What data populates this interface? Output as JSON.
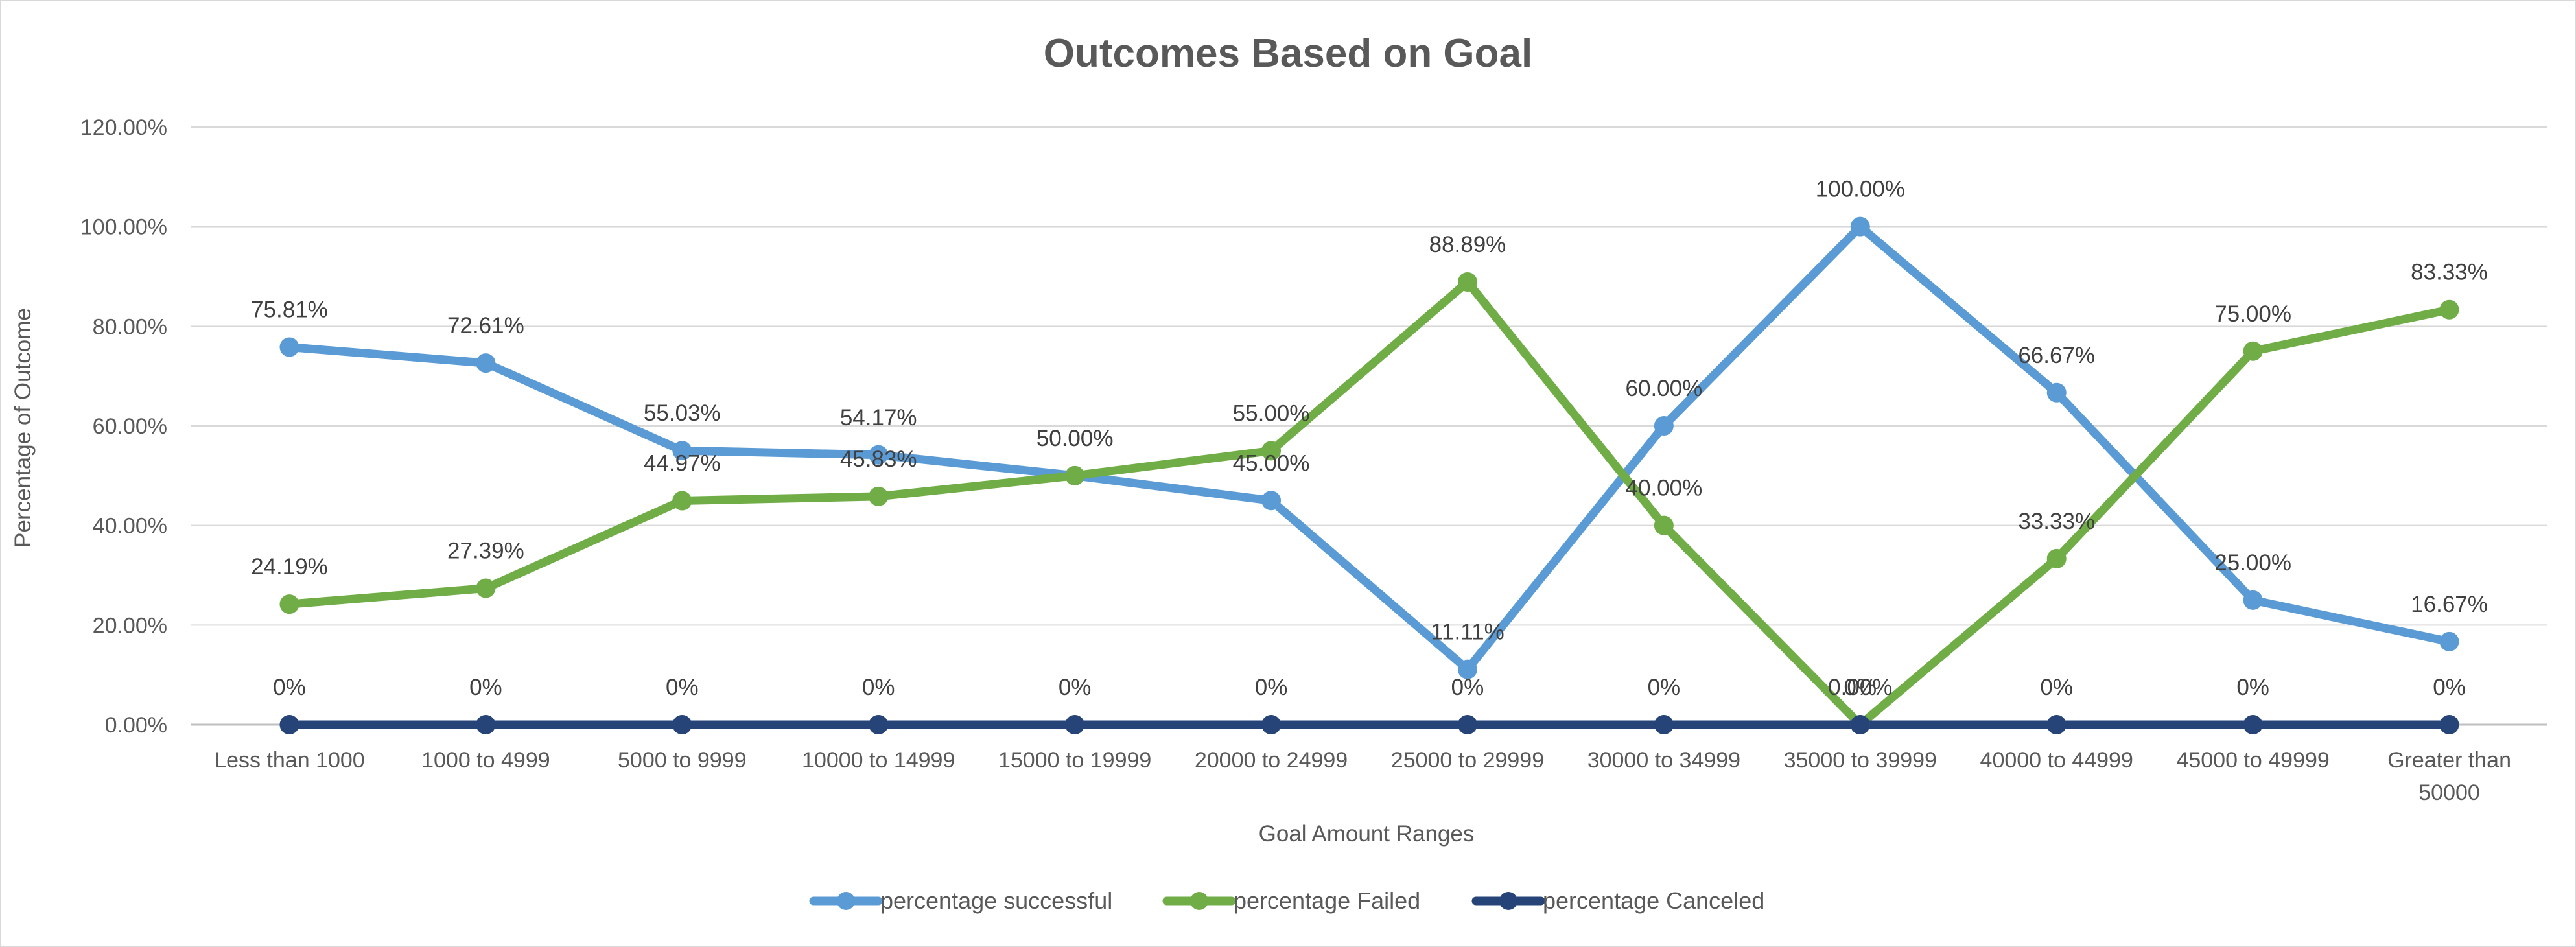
{
  "chart_data": {
    "type": "line",
    "title": "Outcomes Based on Goal",
    "xlabel": "Goal Amount Ranges",
    "ylabel": "Percentage of Outcome",
    "ylim": [
      0,
      1.2
    ],
    "yticks": [
      0,
      0.2,
      0.4,
      0.6,
      0.8,
      1.0,
      1.2
    ],
    "ytick_labels": [
      "0.00%",
      "20.00%",
      "40.00%",
      "60.00%",
      "80.00%",
      "100.00%",
      "120.00%"
    ],
    "categories": [
      [
        "Less than 1000"
      ],
      [
        "1000 to 4999"
      ],
      [
        "5000 to 9999"
      ],
      [
        "10000 to 14999"
      ],
      [
        "15000 to 19999"
      ],
      [
        "20000 to 24999"
      ],
      [
        "25000 to 29999"
      ],
      [
        "30000 to 34999"
      ],
      [
        "35000 to 39999"
      ],
      [
        "40000 to 44999"
      ],
      [
        "45000 to 49999"
      ],
      [
        "Greater than",
        "50000"
      ]
    ],
    "grid": true,
    "legend_position": "bottom",
    "series": [
      {
        "name": "percentage successful",
        "color": "#5B9BD5",
        "values": [
          0.7581,
          0.7261,
          0.5503,
          0.5417,
          0.5,
          0.45,
          0.1111,
          0.6,
          1.0,
          0.6667,
          0.25,
          0.1667
        ],
        "labels": [
          "75.81%",
          "72.61%",
          "55.03%",
          "54.17%",
          "50.00%",
          "45.00%",
          "11.11%",
          "60.00%",
          "100.00%",
          "66.67%",
          "25.00%",
          "16.67%"
        ]
      },
      {
        "name": "percentage Failed",
        "color": "#70AD47",
        "values": [
          0.2419,
          0.2739,
          0.4497,
          0.4583,
          0.5,
          0.55,
          0.8889,
          0.4,
          0.0,
          0.3333,
          0.75,
          0.8333
        ],
        "labels": [
          "24.19%",
          "27.39%",
          "44.97%",
          "45.83%",
          "50.00%",
          "55.00%",
          "88.89%",
          "40.00%",
          "0.00%",
          "33.33%",
          "75.00%",
          "83.33%"
        ]
      },
      {
        "name": "percentage Canceled",
        "color": "#264478",
        "values": [
          0,
          0,
          0,
          0,
          0,
          0,
          0,
          0,
          0,
          0,
          0,
          0
        ],
        "labels": [
          "0%",
          "0%",
          "0%",
          "0%",
          "0%",
          "0%",
          "0%",
          "0%",
          "0%",
          "0%",
          "0%",
          "0%"
        ]
      }
    ]
  }
}
